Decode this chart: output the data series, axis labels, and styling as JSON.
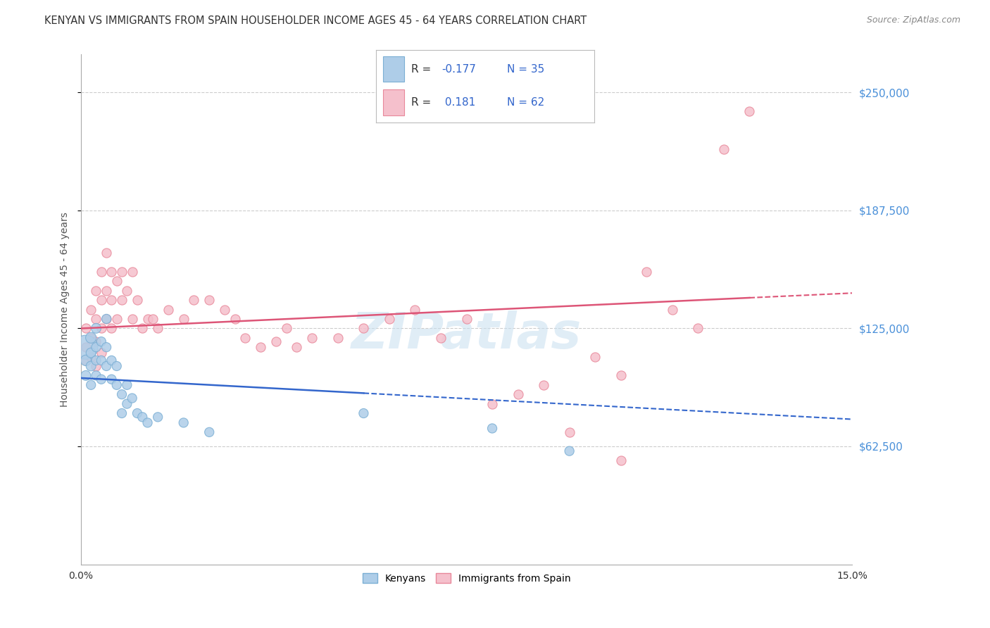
{
  "title": "KENYAN VS IMMIGRANTS FROM SPAIN HOUSEHOLDER INCOME AGES 45 - 64 YEARS CORRELATION CHART",
  "source": "Source: ZipAtlas.com",
  "ylabel": "Householder Income Ages 45 - 64 years",
  "xlim": [
    0,
    0.15
  ],
  "ylim": [
    0,
    270000
  ],
  "ytick_positions": [
    62500,
    125000,
    187500,
    250000
  ],
  "ytick_labels": [
    "$62,500",
    "$125,000",
    "$187,500",
    "$250,000"
  ],
  "kenyan_color": "#7bafd4",
  "kenyan_face": "#aecde8",
  "spain_color": "#e8889a",
  "spain_face": "#f5c0cc",
  "kenyan_R": -0.177,
  "spain_R": 0.181,
  "bg_color": "#ffffff",
  "grid_color": "#cccccc",
  "title_color": "#333333",
  "axis_label_color": "#555555",
  "ytick_color": "#4a90d9",
  "trend_blue": "#3366cc",
  "trend_pink": "#dd5577",
  "watermark": "ZIPatlas",
  "watermark_color": "#c8dff0",
  "kenyan_x": [
    0.001,
    0.001,
    0.001,
    0.002,
    0.002,
    0.002,
    0.002,
    0.003,
    0.003,
    0.003,
    0.003,
    0.004,
    0.004,
    0.004,
    0.005,
    0.005,
    0.005,
    0.006,
    0.006,
    0.007,
    0.007,
    0.008,
    0.008,
    0.009,
    0.009,
    0.01,
    0.011,
    0.012,
    0.013,
    0.015,
    0.02,
    0.025,
    0.055,
    0.08,
    0.095
  ],
  "kenyan_y": [
    115000,
    108000,
    100000,
    120000,
    112000,
    105000,
    95000,
    125000,
    115000,
    108000,
    100000,
    118000,
    108000,
    98000,
    130000,
    115000,
    105000,
    108000,
    98000,
    105000,
    95000,
    90000,
    80000,
    95000,
    85000,
    88000,
    80000,
    78000,
    75000,
    78000,
    75000,
    70000,
    80000,
    72000,
    60000
  ],
  "kenyan_sizes": [
    600,
    120,
    100,
    120,
    100,
    100,
    90,
    100,
    90,
    90,
    90,
    90,
    90,
    90,
    90,
    90,
    90,
    90,
    90,
    90,
    90,
    90,
    90,
    90,
    90,
    90,
    90,
    90,
    90,
    90,
    90,
    90,
    90,
    90,
    90
  ],
  "spain_x": [
    0.001,
    0.001,
    0.001,
    0.002,
    0.002,
    0.002,
    0.003,
    0.003,
    0.003,
    0.003,
    0.004,
    0.004,
    0.004,
    0.004,
    0.005,
    0.005,
    0.005,
    0.006,
    0.006,
    0.006,
    0.007,
    0.007,
    0.008,
    0.008,
    0.009,
    0.01,
    0.01,
    0.011,
    0.012,
    0.013,
    0.014,
    0.015,
    0.017,
    0.02,
    0.022,
    0.025,
    0.028,
    0.03,
    0.032,
    0.035,
    0.038,
    0.04,
    0.042,
    0.045,
    0.05,
    0.055,
    0.06,
    0.065,
    0.07,
    0.075,
    0.08,
    0.085,
    0.09,
    0.1,
    0.105,
    0.11,
    0.115,
    0.12,
    0.125,
    0.13,
    0.095,
    0.105
  ],
  "spain_y": [
    125000,
    115000,
    108000,
    135000,
    120000,
    110000,
    145000,
    130000,
    118000,
    105000,
    155000,
    140000,
    125000,
    112000,
    165000,
    145000,
    130000,
    155000,
    140000,
    125000,
    150000,
    130000,
    155000,
    140000,
    145000,
    155000,
    130000,
    140000,
    125000,
    130000,
    130000,
    125000,
    135000,
    130000,
    140000,
    140000,
    135000,
    130000,
    120000,
    115000,
    118000,
    125000,
    115000,
    120000,
    120000,
    125000,
    130000,
    135000,
    120000,
    130000,
    85000,
    90000,
    95000,
    110000,
    100000,
    155000,
    135000,
    125000,
    220000,
    240000,
    70000,
    55000
  ],
  "spain_sizes": [
    90,
    90,
    90,
    90,
    90,
    90,
    90,
    90,
    90,
    90,
    90,
    90,
    90,
    90,
    90,
    90,
    90,
    90,
    90,
    90,
    90,
    90,
    90,
    90,
    90,
    90,
    90,
    90,
    90,
    90,
    90,
    90,
    90,
    90,
    90,
    90,
    90,
    90,
    90,
    90,
    90,
    90,
    90,
    90,
    90,
    90,
    90,
    90,
    90,
    90,
    90,
    90,
    90,
    90,
    90,
    90,
    90,
    90,
    90,
    90,
    90,
    90
  ]
}
